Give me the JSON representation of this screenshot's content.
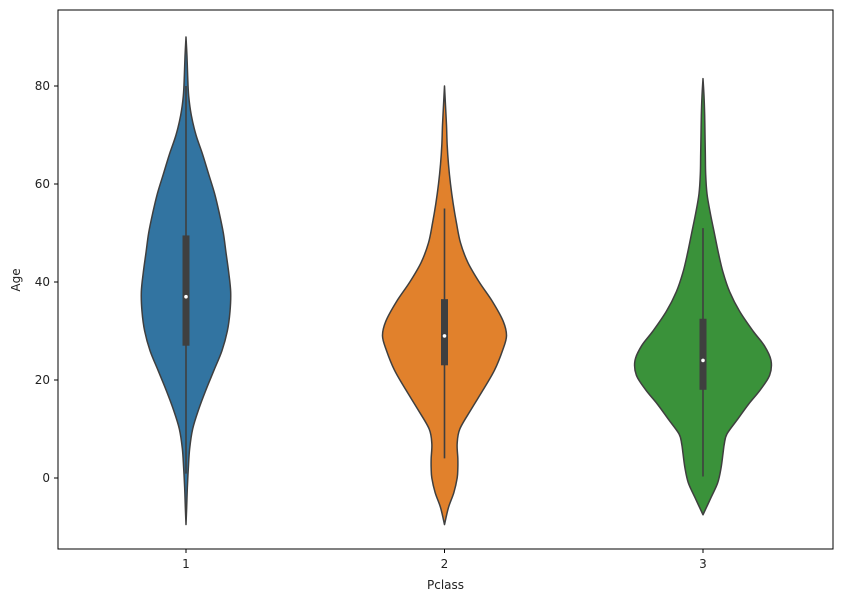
{
  "chart_data": {
    "type": "violin",
    "title": "",
    "xlabel": "Pclass",
    "ylabel": "Age",
    "categories": [
      "1",
      "2",
      "3"
    ],
    "ylim": [
      -14,
      94
    ],
    "yticks": [
      0,
      20,
      40,
      60,
      80
    ],
    "grid": false,
    "colors": [
      "#3274a1",
      "#e1812c",
      "#3a923a"
    ],
    "violins": [
      {
        "category": "1",
        "min": -9.5,
        "max": 90,
        "box": {
          "q1": 27,
          "median": 37,
          "q3": 49.5,
          "whisker_low": 0.9,
          "whisker_high": 80
        },
        "profile": [
          [
            -9.5,
            0
          ],
          [
            -6,
            1
          ],
          [
            -2,
            2
          ],
          [
            2,
            3.5
          ],
          [
            6,
            5.5
          ],
          [
            10,
            10
          ],
          [
            14,
            19
          ],
          [
            18,
            30
          ],
          [
            22,
            42
          ],
          [
            26,
            54
          ],
          [
            30,
            62
          ],
          [
            34,
            66
          ],
          [
            38,
            67
          ],
          [
            42,
            64
          ],
          [
            46,
            60
          ],
          [
            50,
            56
          ],
          [
            54,
            50
          ],
          [
            58,
            43
          ],
          [
            62,
            34
          ],
          [
            66,
            25
          ],
          [
            70,
            15
          ],
          [
            74,
            8
          ],
          [
            78,
            4
          ],
          [
            82,
            2.5
          ],
          [
            86,
            1.5
          ],
          [
            90,
            0
          ]
        ]
      },
      {
        "category": "2",
        "min": -9.5,
        "max": 80,
        "box": {
          "q1": 23,
          "median": 29,
          "q3": 36.5,
          "whisker_low": 4,
          "whisker_high": 55
        },
        "profile": [
          [
            -9.5,
            0
          ],
          [
            -6,
            6
          ],
          [
            -3,
            14
          ],
          [
            0,
            19
          ],
          [
            2,
            20
          ],
          [
            4,
            20
          ],
          [
            7,
            19
          ],
          [
            10,
            23
          ],
          [
            14,
            40
          ],
          [
            18,
            58
          ],
          [
            22,
            75
          ],
          [
            26,
            87
          ],
          [
            29,
            93
          ],
          [
            32,
            88
          ],
          [
            36,
            72
          ],
          [
            40,
            52
          ],
          [
            44,
            35
          ],
          [
            48,
            24
          ],
          [
            52,
            18
          ],
          [
            56,
            13
          ],
          [
            60,
            9
          ],
          [
            64,
            6
          ],
          [
            68,
            4
          ],
          [
            72,
            3
          ],
          [
            76,
            1.5
          ],
          [
            80,
            0
          ]
        ]
      },
      {
        "category": "3",
        "min": -7.5,
        "max": 81.5,
        "box": {
          "q1": 18,
          "median": 24,
          "q3": 32.5,
          "whisker_low": 0.3,
          "whisker_high": 51
        },
        "profile": [
          [
            -7.5,
            0
          ],
          [
            -4,
            12
          ],
          [
            -1,
            22
          ],
          [
            2,
            27
          ],
          [
            5,
            30
          ],
          [
            7,
            32
          ],
          [
            9,
            36
          ],
          [
            12,
            52
          ],
          [
            15,
            68
          ],
          [
            18,
            86
          ],
          [
            21,
            100
          ],
          [
            24,
            102
          ],
          [
            27,
            92
          ],
          [
            30,
            75
          ],
          [
            34,
            55
          ],
          [
            38,
            40
          ],
          [
            42,
            30
          ],
          [
            46,
            23
          ],
          [
            50,
            17
          ],
          [
            54,
            11
          ],
          [
            58,
            6
          ],
          [
            62,
            4
          ],
          [
            66,
            3.5
          ],
          [
            70,
            3
          ],
          [
            74,
            2.5
          ],
          [
            78,
            1.5
          ],
          [
            81.5,
            0
          ]
        ]
      }
    ]
  }
}
